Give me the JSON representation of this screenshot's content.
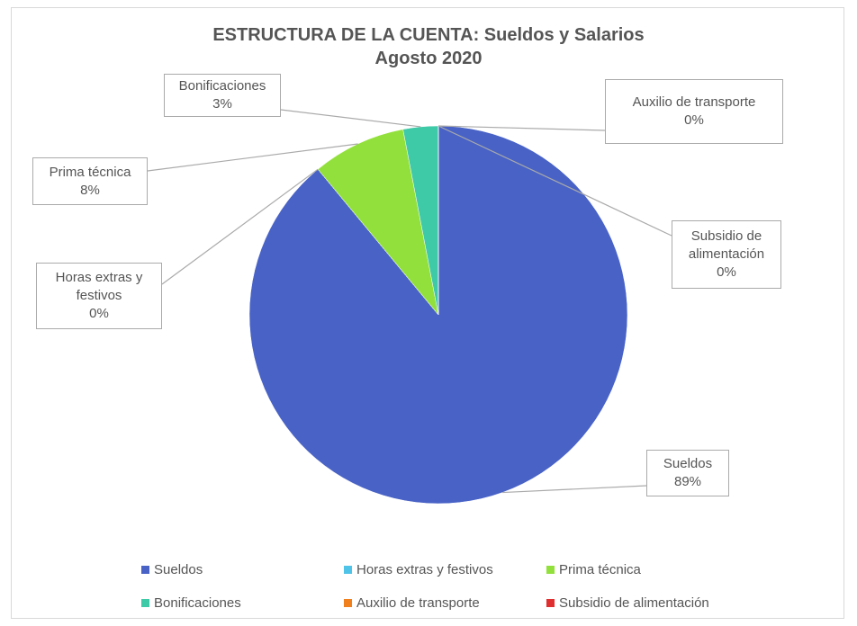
{
  "chart_data": {
    "type": "pie",
    "title": "ESTRUCTURA DE LA CUENTA: Sueldos y Salarios",
    "subtitle": "Agosto 2020",
    "categories": [
      "Sueldos",
      "Horas extras y festivos",
      "Prima técnica",
      "Bonificaciones",
      "Auxilio de transporte",
      "Subsidio de alimentación"
    ],
    "values": [
      89,
      0,
      8,
      3,
      0,
      0
    ],
    "value_labels": [
      "89%",
      "0%",
      "8%",
      "3%",
      "0%",
      "0%"
    ],
    "colors": [
      "#4862c6",
      "#4fc3e8",
      "#92e03c",
      "#3ec9a7",
      "#f07f1e",
      "#e02f2f"
    ],
    "legend": "bottom"
  }
}
